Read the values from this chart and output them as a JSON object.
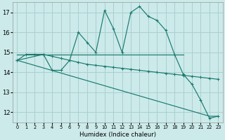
{
  "xlabel": "Humidex (Indice chaleur)",
  "bg_color": "#cceaea",
  "grid_color": "#aacfcf",
  "line_color": "#1a7a6e",
  "xlim": [
    -0.5,
    23.5
  ],
  "ylim": [
    11.5,
    17.5
  ],
  "yticks": [
    12,
    13,
    14,
    15,
    16,
    17
  ],
  "xticks": [
    0,
    1,
    2,
    3,
    4,
    5,
    6,
    7,
    8,
    9,
    10,
    11,
    12,
    13,
    14,
    15,
    16,
    17,
    18,
    19,
    20,
    21,
    22,
    23
  ],
  "line1_x": [
    0,
    1,
    2,
    3,
    4,
    5,
    6,
    7,
    8,
    9,
    10,
    11,
    12,
    13,
    14,
    15,
    16,
    17,
    18,
    19,
    20,
    21,
    22,
    23
  ],
  "line1_y": [
    14.6,
    14.9,
    14.9,
    14.9,
    14.1,
    14.1,
    14.6,
    16.0,
    15.5,
    15.0,
    17.1,
    16.2,
    15.0,
    17.0,
    17.3,
    16.8,
    16.6,
    16.1,
    14.9,
    13.9,
    13.4,
    12.6,
    11.7,
    11.8
  ],
  "line2_x": [
    0,
    3,
    4,
    5,
    6,
    7,
    8,
    9,
    10,
    11,
    12,
    13,
    14,
    15,
    16,
    17,
    18,
    19,
    20,
    21,
    22,
    23
  ],
  "line2_y": [
    14.6,
    14.9,
    14.8,
    14.7,
    14.6,
    14.5,
    14.4,
    14.35,
    14.3,
    14.25,
    14.2,
    14.15,
    14.1,
    14.05,
    14.0,
    13.95,
    13.9,
    13.85,
    13.8,
    13.75,
    13.7,
    13.65
  ],
  "line3_x": [
    0,
    19
  ],
  "line3_y": [
    14.9,
    14.9
  ],
  "line4_x": [
    0,
    22,
    23
  ],
  "line4_y": [
    14.6,
    11.8,
    11.8
  ]
}
